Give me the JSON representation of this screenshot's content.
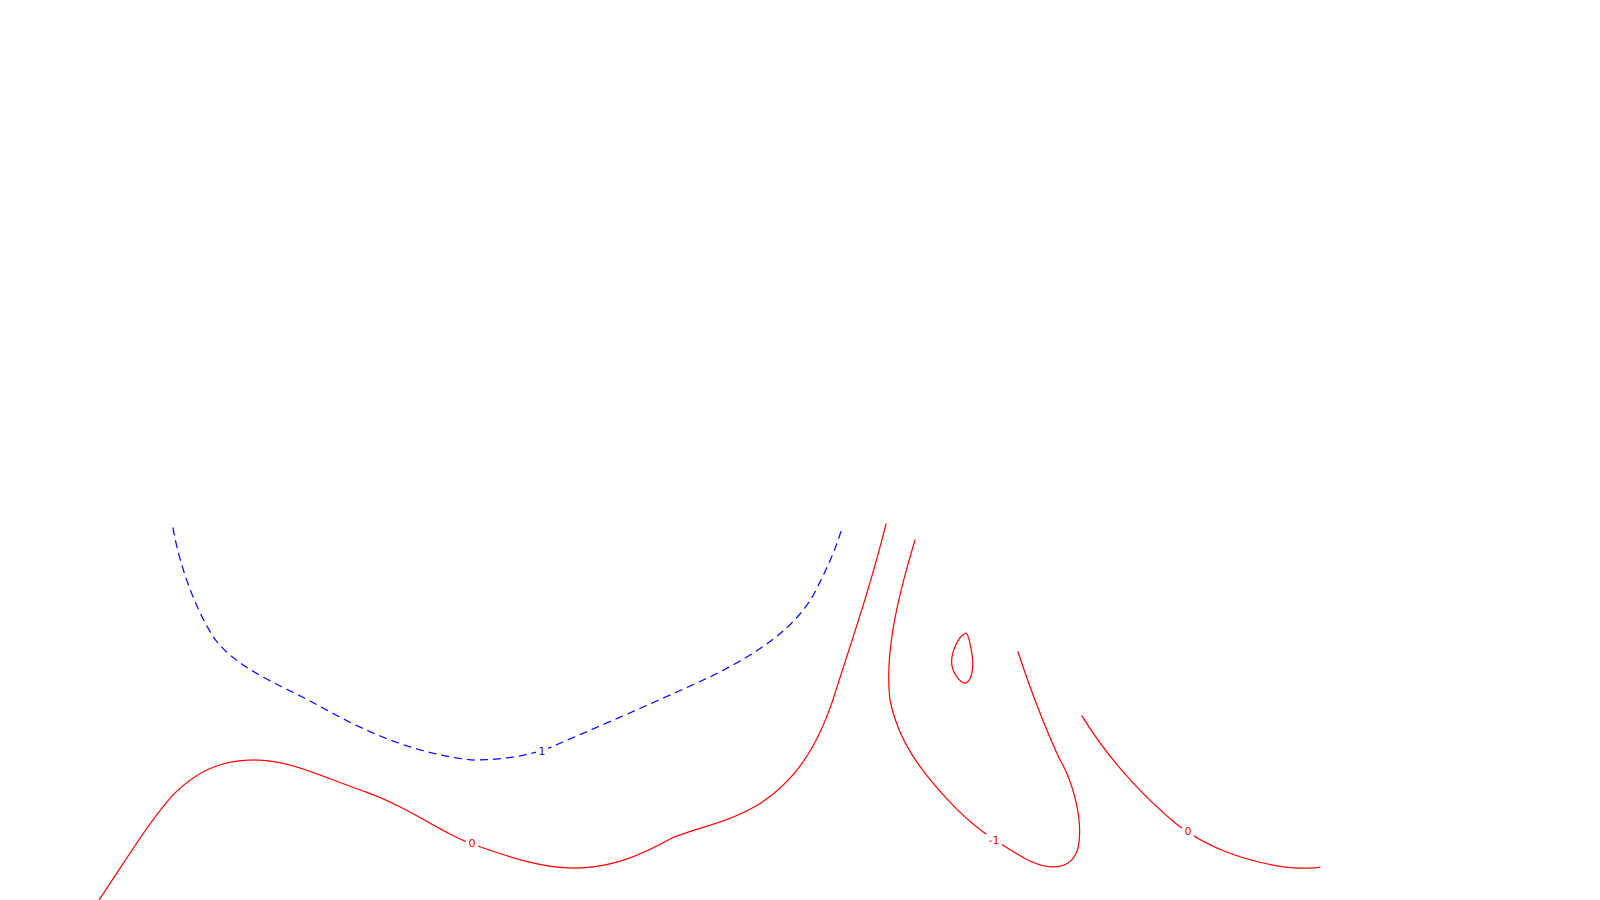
{
  "contour_plot": {
    "colors": {
      "positive": "#0000ff",
      "zero_negative": "#ff0000",
      "background": "#ffffff"
    },
    "contours": [
      {
        "level": "1",
        "style": "dashed",
        "color": "#0000ff"
      },
      {
        "level": "0",
        "style": "solid",
        "color": "#ff0000"
      },
      {
        "level": "-1",
        "style": "solid",
        "color": "#ff0000"
      },
      {
        "level": "0",
        "style": "solid",
        "color": "#ff0000"
      }
    ],
    "labels": {
      "level_1": "1",
      "level_0_left": "0",
      "level_neg1": "-1",
      "level_0_right": "0"
    }
  }
}
